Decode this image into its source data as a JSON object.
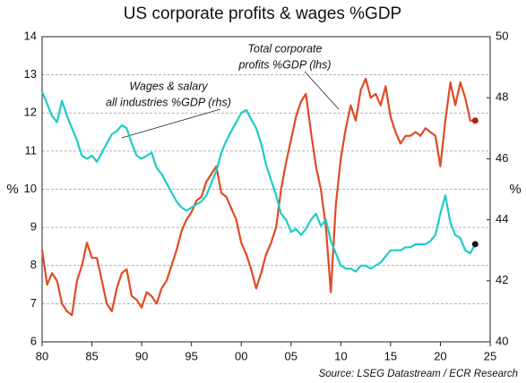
{
  "chart_data": {
    "type": "line",
    "title": "US corporate profits & wages %GDP",
    "ylabel": "%",
    "y2label": "%",
    "source": "Source: LSEG Datastream / ECR Research",
    "x": [
      1980,
      1980.5,
      1981,
      1981.5,
      1982,
      1982.5,
      1983,
      1983.5,
      1984,
      1984.5,
      1985,
      1985.5,
      1986,
      1986.5,
      1987,
      1987.5,
      1988,
      1988.5,
      1989,
      1989.5,
      1990,
      1990.5,
      1991,
      1991.5,
      1992,
      1992.5,
      1993,
      1993.5,
      1994,
      1994.5,
      1995,
      1995.5,
      1996,
      1996.5,
      1997,
      1997.5,
      1998,
      1998.5,
      1999,
      1999.5,
      2000,
      2000.5,
      2001,
      2001.5,
      2002,
      2002.5,
      2003,
      2003.5,
      2004,
      2004.5,
      2005,
      2005.5,
      2006,
      2006.5,
      2007,
      2007.5,
      2008,
      2008.5,
      2009,
      2009.5,
      2010,
      2010.5,
      2011,
      2011.5,
      2012,
      2012.5,
      2013,
      2013.5,
      2014,
      2014.5,
      2015,
      2015.5,
      2016,
      2016.5,
      2017,
      2017.5,
      2018,
      2018.5,
      2019,
      2019.5,
      2020,
      2020.5,
      2021,
      2021.5,
      2022,
      2022.5,
      2023,
      2023.5
    ],
    "xlim": [
      1980,
      2025
    ],
    "xticks": [
      {
        "value": 1980,
        "label": "80"
      },
      {
        "value": 1985,
        "label": "85"
      },
      {
        "value": 1990,
        "label": "90"
      },
      {
        "value": 1995,
        "label": "95"
      },
      {
        "value": 2000,
        "label": "00"
      },
      {
        "value": 2005,
        "label": "05"
      },
      {
        "value": 2010,
        "label": "10"
      },
      {
        "value": 2015,
        "label": "15"
      },
      {
        "value": 2020,
        "label": "20"
      },
      {
        "value": 2025,
        "label": "25"
      }
    ],
    "ylim": [
      6,
      14
    ],
    "yticks": [
      6,
      7,
      8,
      9,
      10,
      11,
      12,
      13,
      14
    ],
    "y2lim": [
      40,
      50
    ],
    "y2ticks": [
      40,
      42,
      44,
      46,
      48,
      50
    ],
    "grid": true,
    "series": [
      {
        "label": [
          "Total corporate",
          "profits %GDP (lhs)"
        ],
        "color": "#e04a23",
        "dot_color": "#b0200c",
        "values": [
          8.4,
          7.5,
          7.8,
          7.6,
          7.0,
          6.8,
          6.7,
          7.6,
          8.0,
          8.6,
          8.2,
          8.2,
          7.6,
          7.0,
          6.8,
          7.4,
          7.8,
          7.9,
          7.2,
          7.1,
          6.9,
          7.3,
          7.2,
          7.0,
          7.4,
          7.6,
          8.0,
          8.4,
          8.9,
          9.2,
          9.4,
          9.7,
          9.8,
          10.2,
          10.4,
          10.6,
          9.9,
          9.8,
          9.5,
          9.2,
          8.6,
          8.3,
          7.9,
          7.4,
          7.8,
          8.3,
          8.6,
          9.0,
          10.0,
          10.7,
          11.3,
          11.9,
          12.3,
          12.5,
          11.5,
          10.6,
          10.0,
          9.0,
          7.3,
          9.6,
          10.8,
          11.6,
          12.2,
          11.8,
          12.6,
          12.9,
          12.4,
          12.5,
          12.2,
          12.7,
          11.9,
          11.5,
          11.2,
          11.4,
          11.4,
          11.5,
          11.4,
          11.6,
          11.5,
          11.4,
          10.6,
          11.8,
          12.8,
          12.2,
          12.8,
          12.4,
          11.8,
          11.8
        ]
      },
      {
        "label": [
          "Wages & salary",
          "all industries %GDP (rhs)"
        ],
        "color": "#1ecbc8",
        "dot_color": "#111111",
        "axis": "y2",
        "values": [
          48.2,
          47.8,
          47.4,
          47.2,
          47.9,
          47.4,
          47.0,
          46.6,
          46.1,
          46.0,
          46.1,
          45.9,
          46.2,
          46.5,
          46.8,
          46.9,
          47.1,
          47.0,
          46.5,
          46.1,
          46.0,
          46.1,
          46.2,
          45.7,
          45.5,
          45.2,
          44.9,
          44.6,
          44.4,
          44.3,
          44.4,
          44.5,
          44.6,
          44.8,
          45.2,
          45.6,
          46.2,
          46.6,
          46.9,
          47.2,
          47.5,
          47.6,
          47.3,
          47.0,
          46.5,
          45.8,
          45.3,
          44.8,
          44.2,
          44.0,
          43.6,
          43.7,
          43.5,
          43.7,
          44.0,
          44.2,
          43.8,
          44.0,
          43.3,
          42.9,
          42.5,
          42.4,
          42.4,
          42.3,
          42.5,
          42.5,
          42.4,
          42.5,
          42.6,
          42.8,
          43.0,
          43.0,
          43.0,
          43.1,
          43.1,
          43.2,
          43.2,
          43.2,
          43.3,
          43.5,
          44.2,
          44.8,
          43.9,
          43.5,
          43.4,
          43.0,
          42.9,
          43.2
        ]
      }
    ]
  }
}
